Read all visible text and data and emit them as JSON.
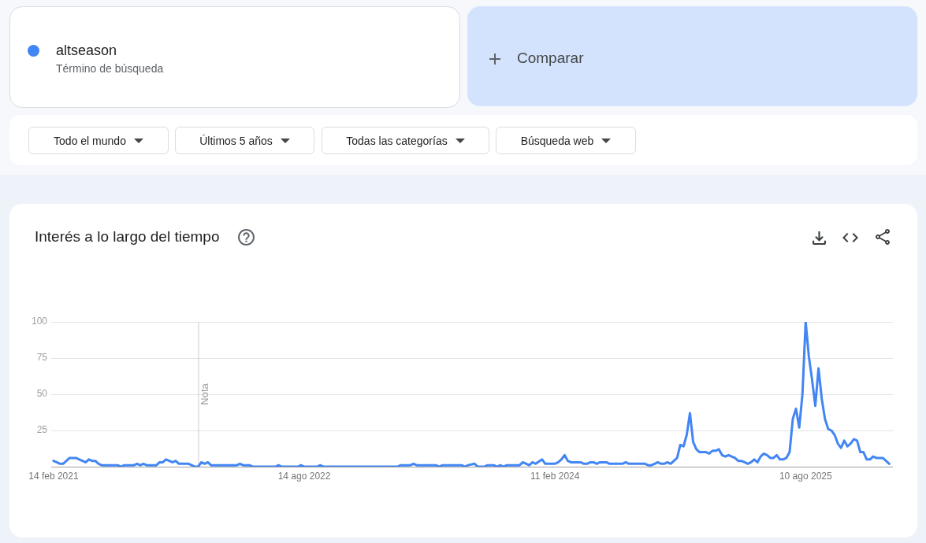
{
  "chart_data": {
    "type": "line",
    "title": "Interés a lo largo del tiempo",
    "annotations": [
      "Término de búsqueda",
      "Comparar",
      "Todo el mundo",
      "Últimos 5 años",
      "Todas las categorías",
      "Búsqueda web"
    ],
    "x": [
      "2021-02-14",
      "2021-02-21",
      "2021-02-28",
      "2021-03-07",
      "2021-03-14",
      "2021-03-21",
      "2021-04-04",
      "2021-04-11",
      "2021-04-18",
      "2021-04-25",
      "2021-05-02",
      "2021-05-09",
      "2021-05-16",
      "2021-05-23",
      "2021-05-30",
      "2021-07-04",
      "2021-07-11",
      "2021-07-18",
      "2021-08-08",
      "2021-08-15",
      "2021-08-22",
      "2021-08-29",
      "2021-09-05",
      "2021-09-26",
      "2021-10-03",
      "2021-10-10",
      "2021-10-17",
      "2021-10-24",
      "2021-10-31",
      "2021-11-07",
      "2021-11-14",
      "2021-12-05",
      "2021-12-12",
      "2021-12-19",
      "2021-12-26",
      "2022-01-02",
      "2022-01-09",
      "2022-01-16",
      "2022-01-23",
      "2022-03-20",
      "2022-03-27",
      "2022-04-03",
      "2022-04-17",
      "2022-04-24",
      "2022-06-12",
      "2022-06-19",
      "2022-06-26",
      "2022-07-31",
      "2022-08-07",
      "2022-08-14",
      "2022-09-11",
      "2022-09-18",
      "2022-09-25",
      "2023-03-05",
      "2023-03-12",
      "2023-04-02",
      "2023-04-09",
      "2023-04-16",
      "2023-05-28",
      "2023-06-04",
      "2023-06-11",
      "2023-07-23",
      "2023-07-30",
      "2023-08-06",
      "2023-08-20",
      "2023-08-27",
      "2023-09-10",
      "2023-09-17",
      "2023-10-01",
      "2023-10-08",
      "2023-10-15",
      "2023-10-22",
      "2023-10-29",
      "2023-11-26",
      "2023-12-03",
      "2023-12-17",
      "2023-12-24",
      "2023-12-31",
      "2024-01-14",
      "2024-01-21",
      "2024-02-11",
      "2024-02-18",
      "2024-02-25",
      "2024-03-03",
      "2024-03-10",
      "2024-03-17",
      "2024-04-07",
      "2024-04-14",
      "2024-04-21",
      "2024-04-28",
      "2024-05-05",
      "2024-05-12",
      "2024-05-19",
      "2024-06-02",
      "2024-06-09",
      "2024-07-07",
      "2024-07-14",
      "2024-07-21",
      "2024-08-25",
      "2024-09-01",
      "2024-09-08",
      "2024-09-15",
      "2024-09-22",
      "2024-09-29",
      "2024-10-06",
      "2024-10-13",
      "2024-10-20",
      "2024-10-27",
      "2024-11-03",
      "2024-11-10",
      "2024-11-17",
      "2024-11-24",
      "2024-12-01",
      "2024-12-08",
      "2024-12-15",
      "2024-12-22",
      "2024-12-29",
      "2025-01-05",
      "2025-01-12",
      "2025-01-19",
      "2025-01-26",
      "2025-02-02",
      "2025-02-09",
      "2025-02-16",
      "2025-02-23",
      "2025-03-02",
      "2025-03-09",
      "2025-03-16",
      "2025-03-23",
      "2025-03-30",
      "2025-04-06",
      "2025-04-13",
      "2025-04-20",
      "2025-04-27",
      "2025-05-04",
      "2025-05-11",
      "2025-05-18",
      "2025-05-25",
      "2025-06-01",
      "2025-06-08",
      "2025-06-15",
      "2025-06-22",
      "2025-06-29",
      "2025-07-06",
      "2025-07-13",
      "2025-07-20",
      "2025-07-27",
      "2025-08-03",
      "2025-08-10",
      "2025-08-17",
      "2025-08-24",
      "2025-08-31",
      "2025-09-07",
      "2025-09-14",
      "2025-09-21",
      "2025-09-28",
      "2025-10-05",
      "2025-10-12",
      "2025-10-19",
      "2025-10-26",
      "2025-11-02",
      "2025-11-09",
      "2025-11-16",
      "2025-11-23",
      "2025-11-30",
      "2025-12-07",
      "2025-12-14",
      "2025-12-21",
      "2025-12-28",
      "2026-01-04",
      "2026-01-11",
      "2026-01-18",
      "2026-01-25",
      "2026-02-01",
      "2026-02-08"
    ],
    "series": [
      {
        "name": "altseason",
        "color": "#4285f4",
        "values": [
          4,
          3,
          2,
          2,
          4,
          6,
          6,
          5,
          4,
          3,
          5,
          4,
          4,
          2,
          1,
          1,
          0,
          1,
          1,
          2,
          1,
          2,
          1,
          1,
          3,
          3,
          5,
          4,
          3,
          4,
          2,
          2,
          1,
          0,
          0,
          3,
          2,
          3,
          1,
          1,
          2,
          1,
          1,
          0,
          0,
          1,
          0,
          0,
          1,
          0,
          0,
          1,
          0,
          0,
          1,
          1,
          2,
          1,
          1,
          0,
          1,
          1,
          0,
          1,
          2,
          0,
          0,
          1,
          1,
          0,
          1,
          0,
          1,
          1,
          3,
          1,
          3,
          2,
          5,
          2,
          2,
          3,
          5,
          8,
          4,
          3,
          3,
          2,
          2,
          3,
          3,
          2,
          3,
          3,
          2,
          2,
          3,
          2,
          2,
          1,
          1,
          2,
          3,
          2,
          2,
          3,
          2,
          4,
          6,
          15,
          14,
          22,
          37,
          17,
          12,
          10,
          10,
          10,
          9,
          11,
          11,
          12,
          8,
          7,
          8,
          7,
          6,
          4,
          4,
          3,
          2,
          3,
          5,
          3,
          7,
          9,
          8,
          6,
          6,
          8,
          5,
          5,
          6,
          10,
          33,
          40,
          27,
          50,
          100,
          76,
          60,
          42,
          68,
          47,
          33,
          26,
          25,
          22,
          16,
          13,
          18,
          14,
          16,
          19,
          18,
          10,
          10,
          5,
          5,
          7,
          6,
          6,
          6,
          4,
          2
        ]
      }
    ],
    "xlim": [
      "2021-02-09",
      "2026-02-16"
    ],
    "xticks": [
      {
        "value": "2021-02-14",
        "label": "14 feb 2021"
      },
      {
        "value": "2022-08-14",
        "label": "14 ago 2022"
      },
      {
        "value": "2024-02-11",
        "label": "11 feb 2024"
      },
      {
        "value": "2025-08-10",
        "label": "10 ago 2025"
      }
    ],
    "ylim": [
      0,
      100
    ],
    "yticks": [
      {
        "value": 0,
        "label": null
      },
      25,
      50,
      75,
      100
    ],
    "grid": "y",
    "legend": "top left",
    "marker": "none",
    "line_style": "solid",
    "ref_lines": [
      {
        "axis": "x",
        "value": "2021-12-26",
        "label": "Nota",
        "color": "#cccccc"
      }
    ]
  }
}
